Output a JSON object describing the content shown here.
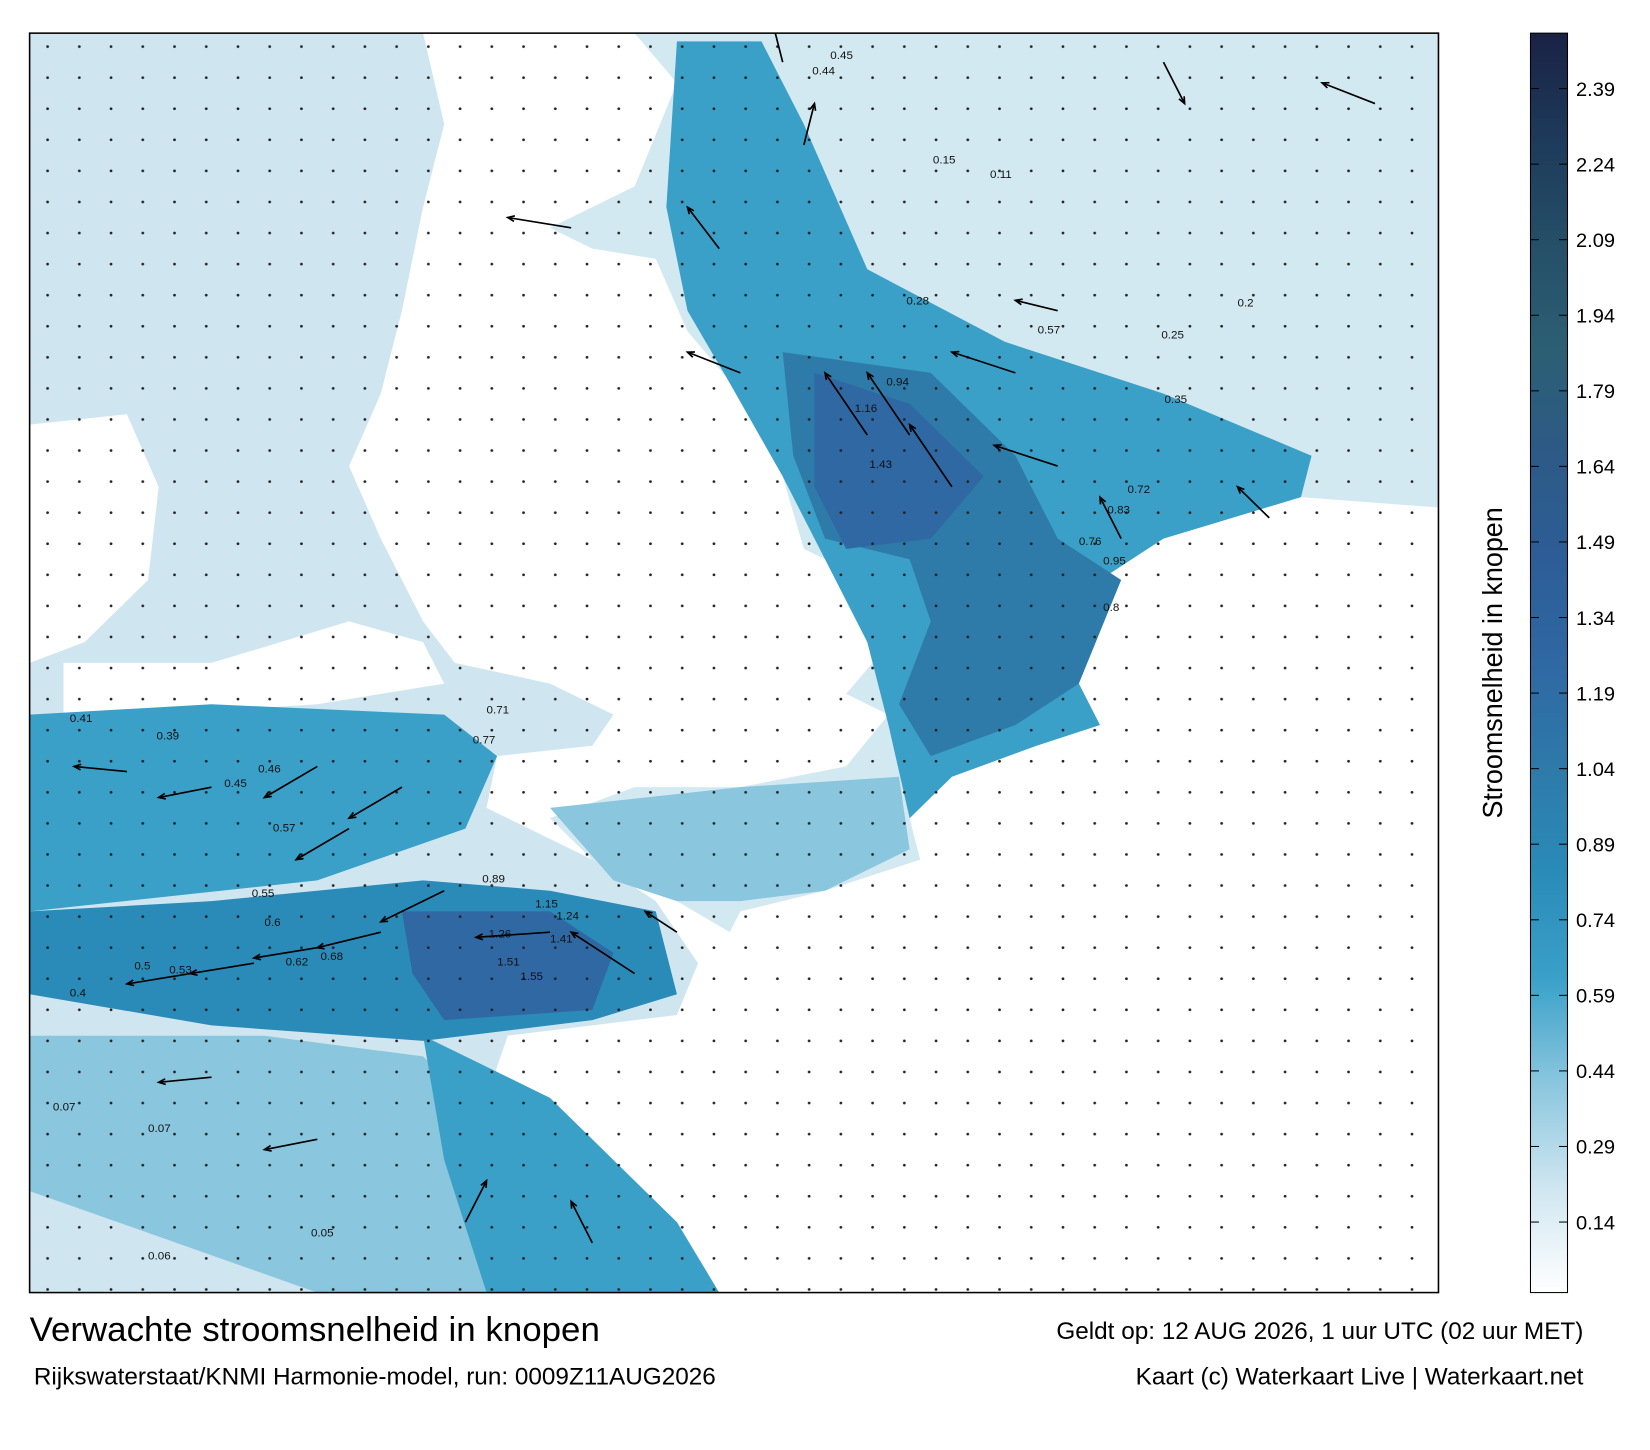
{
  "title": "Verwachte stroomsnelheid in knopen",
  "subtitle": "Rijkswaterstaat/KNMI Harmonie-model, run: 0009Z11AUG2026",
  "valid": "Geldt op: 12 AUG 2026, 1 uur UTC (02 uur MET)",
  "credit": "Kaart (c) Waterkaart Live | Waterkaart.net",
  "colorbar": {
    "label": "Stroomsnelheid in knopen",
    "lim": [
      0,
      2.5
    ],
    "ticks": [
      0.14,
      0.29,
      0.44,
      0.59,
      0.74,
      0.89,
      1.04,
      1.19,
      1.34,
      1.49,
      1.64,
      1.79,
      1.94,
      2.09,
      2.24,
      2.39
    ],
    "colors": [
      "#ffffff",
      "#cfe6f0",
      "#8ac6de",
      "#3aa0c8",
      "#2a8bb8",
      "#2e7aa9",
      "#2f68a3",
      "#2d5d96",
      "#2d5a86",
      "#2c5f73",
      "#254f67",
      "#1d3a5a",
      "#1a2244"
    ]
  },
  "map": {
    "labels": [
      1.43,
      1.16,
      0.94,
      1.26,
      1.55,
      1.51,
      1.41,
      1.24,
      1.15,
      0.89,
      0.77,
      0.71,
      0.5,
      0.53,
      0.4,
      0.62,
      0.68,
      0.6,
      0.55,
      0.57,
      0.46,
      0.45,
      0.39,
      0.41,
      0.35,
      0.28,
      0.57,
      0.25,
      0.2,
      0.15,
      0.11,
      0.07,
      0.07,
      0.06,
      0.05,
      0.45,
      0.44,
      0.8,
      0.95,
      0.76,
      0.72,
      0.83
    ]
  }
}
